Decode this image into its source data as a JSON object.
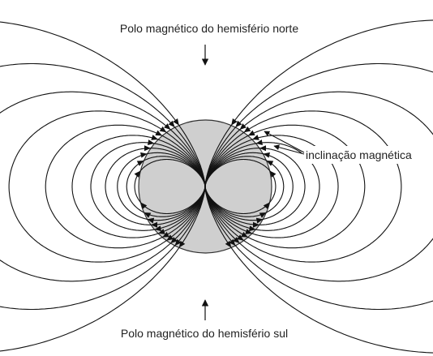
{
  "labels": {
    "north": "Polo magnético do hemisfério norte",
    "inclination": "inclinação magnética",
    "south": "Polo magnético do hemisfério sul"
  }
}
